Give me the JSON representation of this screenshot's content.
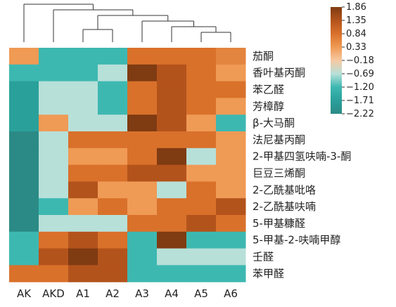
{
  "chart_data": {
    "type": "heatmap",
    "x_categories": [
      "AK",
      "AKD",
      "A1",
      "A2",
      "A3",
      "A4",
      "A5",
      "A6"
    ],
    "y_categories": [
      "茄酮",
      "香叶基丙酮",
      "苯乙醛",
      "芳樟醇",
      "β-大马酮",
      "法尼基丙酮",
      "2-甲基四氢呋喃-3-酮",
      "巨豆三烯酮",
      "2-乙酰基吡咯",
      "2-乙酰基呋喃",
      "5-甲基糠醛",
      "5-甲基-2-呋喃甲醇",
      "壬醛",
      "苯甲醛"
    ],
    "values": [
      [
        0.33,
        -1.2,
        -1.2,
        -1.2,
        0.84,
        0.84,
        0.84,
        0.6
      ],
      [
        -1.2,
        -1.2,
        -1.2,
        -0.69,
        1.86,
        1.35,
        0.84,
        0.33
      ],
      [
        -1.71,
        -0.69,
        -0.69,
        -1.2,
        0.84,
        1.35,
        0.84,
        0.84
      ],
      [
        -1.71,
        -0.69,
        -0.69,
        -1.2,
        0.84,
        1.35,
        0.84,
        0.33
      ],
      [
        -1.71,
        0.33,
        -0.69,
        -0.69,
        1.86,
        1.35,
        0.33,
        -1.2
      ],
      [
        -2.22,
        -0.69,
        0.84,
        0.84,
        0.84,
        0.84,
        0.84,
        0.33
      ],
      [
        -2.22,
        -0.69,
        0.33,
        0.33,
        0.84,
        1.86,
        -0.69,
        0.33
      ],
      [
        -2.22,
        -0.69,
        0.84,
        0.84,
        1.35,
        1.35,
        0.33,
        0.33
      ],
      [
        -2.22,
        -0.69,
        1.35,
        0.33,
        0.33,
        -0.69,
        0.84,
        0.33
      ],
      [
        -2.22,
        -1.2,
        0.33,
        0.84,
        0.33,
        0.84,
        0.84,
        1.35
      ],
      [
        -2.22,
        -0.69,
        -0.69,
        -0.69,
        0.84,
        0.84,
        1.35,
        0.84
      ],
      [
        -1.2,
        0.84,
        1.35,
        0.84,
        -1.2,
        1.86,
        -1.2,
        -1.2
      ],
      [
        -1.2,
        1.35,
        1.86,
        1.35,
        -1.2,
        -0.69,
        -0.69,
        -0.69
      ],
      [
        0.84,
        0.84,
        1.35,
        1.35,
        -1.2,
        -1.2,
        -1.2,
        -1.2
      ]
    ],
    "colorbar_ticks": [
      "1.86",
      "1.35",
      "0.84",
      "0.33",
      "−0.18",
      "−0.69",
      "−1.20",
      "−1.71",
      "−2.22"
    ],
    "colorbar_levels": [
      1.86,
      1.35,
      0.84,
      0.33,
      -0.18,
      -0.69,
      -1.2,
      -1.71,
      -2.22
    ],
    "colorbar_colors": [
      "#7f3b12",
      "#b3531c",
      "#d9712b",
      "#ef9a55",
      "#f6c9a2",
      "#b7e0d9",
      "#3db8b1",
      "#2aa09b",
      "#2b8a85"
    ],
    "dendrogram_order": [
      "AK",
      "AKD",
      "A1",
      "A2",
      "A3",
      "A4",
      "A5",
      "A6"
    ]
  }
}
